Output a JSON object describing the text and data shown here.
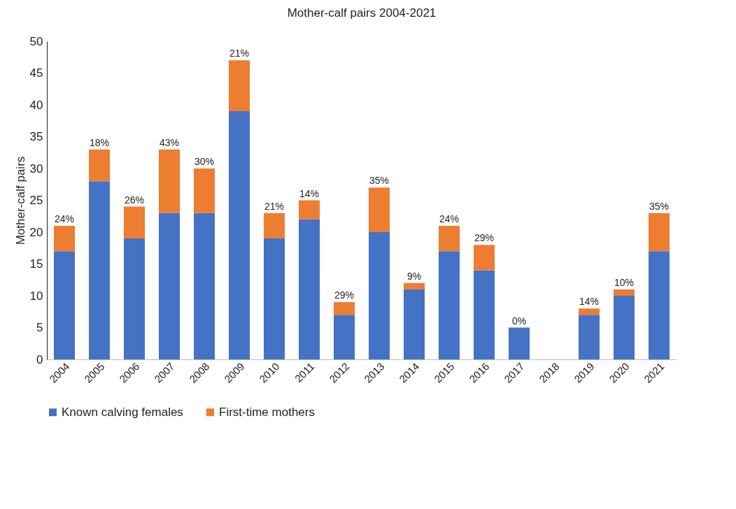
{
  "chart_data": {
    "type": "bar",
    "title": "Mother-calf pairs 2004-2021",
    "ylabel": "Mother-calf pairs",
    "stacked": true,
    "categories": [
      "2004",
      "2005",
      "2006",
      "2007",
      "2008",
      "2009",
      "2010",
      "2011",
      "2012",
      "2013",
      "2014",
      "2015",
      "2016",
      "2017",
      "2018",
      "2019",
      "2020",
      "2021"
    ],
    "series": [
      {
        "name": "Known calving females",
        "color": "#4472c4",
        "values": [
          17,
          28,
          19,
          23,
          23,
          39,
          19,
          22,
          7,
          20,
          11,
          17,
          14,
          5,
          null,
          7,
          10,
          17
        ]
      },
      {
        "name": "First-time mothers",
        "color": "#ed7d31",
        "values": [
          4,
          5,
          5,
          10,
          7,
          8,
          4,
          3,
          2,
          7,
          1,
          4,
          4,
          0,
          null,
          1,
          1,
          6
        ]
      }
    ],
    "annotations": [
      {
        "text": "24%",
        "x": "2004",
        "y": 21
      },
      {
        "text": "18%",
        "x": "2005",
        "y": 33
      },
      {
        "text": "26%",
        "x": "2006",
        "y": 24
      },
      {
        "text": "43%",
        "x": "2007",
        "y": 33
      },
      {
        "text": "30%",
        "x": "2008",
        "y": 30
      },
      {
        "text": "21%",
        "x": "2009",
        "y": 47
      },
      {
        "text": "21%",
        "x": "2010",
        "y": 23
      },
      {
        "text": "14%",
        "x": "2011",
        "y": 25
      },
      {
        "text": "29%",
        "x": "2012",
        "y": 9
      },
      {
        "text": "35%",
        "x": "2013",
        "y": 27
      },
      {
        "text": "9%",
        "x": "2014",
        "y": 12
      },
      {
        "text": "24%",
        "x": "2015",
        "y": 21
      },
      {
        "text": "29%",
        "x": "2016",
        "y": 18
      },
      {
        "text": "0%",
        "x": "2017",
        "y": 5
      },
      {
        "text": "14%",
        "x": "2019",
        "y": 8
      },
      {
        "text": "10%",
        "x": "2020",
        "y": 11
      },
      {
        "text": "35%",
        "x": "2021",
        "y": 23
      }
    ],
    "ylim": [
      0,
      50
    ],
    "yticks": [
      0,
      5,
      10,
      15,
      20,
      25,
      30,
      35,
      40,
      45,
      50
    ],
    "grid": false,
    "legend": "bottom"
  }
}
